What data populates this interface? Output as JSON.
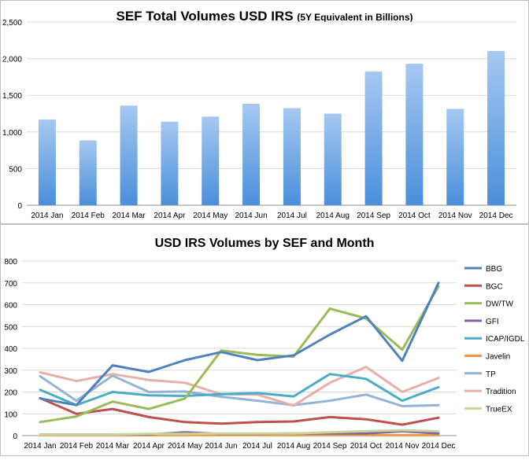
{
  "chart_data": [
    {
      "type": "bar",
      "title": "SEF Total Volumes USD IRS",
      "title_note": "(5Y Equivalent in Billions)",
      "categories": [
        "2014 Jan",
        "2014 Feb",
        "2014 Mar",
        "2014 Apr",
        "2014 May",
        "2014 Jun",
        "2014 Jul",
        "2014 Aug",
        "2014 Sep",
        "2014 Oct",
        "2014 Nov",
        "2014 Dec"
      ],
      "values": [
        1170,
        885,
        1360,
        1140,
        1210,
        1385,
        1325,
        1250,
        1825,
        1930,
        1315,
        2105
      ],
      "ylim": [
        0,
        2500
      ],
      "yticks": [
        0,
        500,
        1000,
        1500,
        2000,
        2500
      ],
      "ytick_labels": [
        "0",
        "500",
        "1,000",
        "1,500",
        "2,000",
        "2,500"
      ],
      "bar_color_top": "#a6c8f0",
      "bar_color_bottom": "#4a8fdb",
      "grid": true
    },
    {
      "type": "line",
      "title": "USD IRS Volumes by SEF and Month",
      "categories": [
        "2014 Jan",
        "2014 Feb",
        "2014 Mar",
        "2014 Apr",
        "2014 May",
        "2014 Jun",
        "2014 Jul",
        "2014 Aug",
        "2014 Sep",
        "2014 Oct",
        "2014 Nov",
        "2014 Dec"
      ],
      "ylim": [
        0,
        800
      ],
      "yticks": [
        0,
        100,
        200,
        300,
        400,
        500,
        600,
        700,
        800
      ],
      "legend_position": "right",
      "grid": true,
      "series": [
        {
          "name": "BBG",
          "color": "#4f81bd",
          "values": [
            170,
            140,
            322,
            292,
            346,
            383,
            346,
            368,
            463,
            547,
            343,
            700
          ]
        },
        {
          "name": "BGC",
          "color": "#c0504d",
          "values": [
            172,
            100,
            122,
            85,
            62,
            55,
            62,
            65,
            85,
            75,
            50,
            82
          ]
        },
        {
          "name": "DW/TW",
          "color": "#9bbb59",
          "values": [
            62,
            88,
            156,
            122,
            170,
            390,
            370,
            362,
            582,
            537,
            394,
            684
          ]
        },
        {
          "name": "GFI",
          "color": "#8064a2",
          "values": [
            5,
            5,
            5,
            5,
            15,
            8,
            8,
            10,
            10,
            10,
            20,
            10
          ]
        },
        {
          "name": "ICAP/IGDL",
          "color": "#4bacc6",
          "values": [
            210,
            140,
            200,
            185,
            182,
            190,
            195,
            180,
            282,
            260,
            160,
            222
          ]
        },
        {
          "name": "Javelin",
          "color": "#f79646",
          "values": [
            2,
            2,
            2,
            2,
            2,
            2,
            2,
            2,
            2,
            2,
            2,
            2
          ]
        },
        {
          "name": "TP",
          "color": "#95b3d7",
          "values": [
            272,
            160,
            275,
            200,
            202,
            178,
            160,
            140,
            160,
            188,
            135,
            140
          ]
        },
        {
          "name": "Tradition",
          "color": "#e6b0a8",
          "values": [
            290,
            250,
            282,
            255,
            242,
            190,
            188,
            138,
            242,
            315,
            200,
            264
          ]
        },
        {
          "name": "TrueEX",
          "color": "#c4d79b",
          "values": [
            5,
            5,
            5,
            8,
            8,
            10,
            10,
            10,
            15,
            20,
            25,
            20
          ]
        }
      ]
    }
  ]
}
